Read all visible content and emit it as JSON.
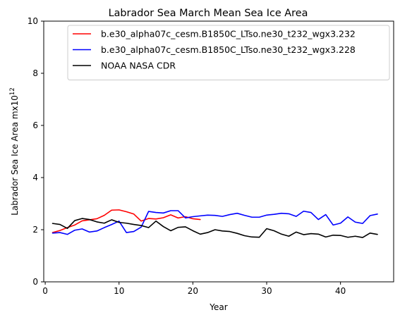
{
  "chart_data": {
    "type": "line",
    "title": "Labrador Sea March Mean Sea Ice Area",
    "xlabel": "Year",
    "ylabel_main": "Labrador Sea Ice Area mx10",
    "ylabel_sup": "12",
    "xlim": [
      -0.2,
      47.2
    ],
    "ylim": [
      0,
      10
    ],
    "xticks": [
      0,
      10,
      20,
      30,
      40
    ],
    "yticks": [
      0,
      2,
      4,
      6,
      8,
      10
    ],
    "grid": false,
    "legend_position": "upper right",
    "series": [
      {
        "name": "b.e30_alpha07c_cesm.B1850C_LTso.ne30_t232_wgx3.232",
        "color": "#ff0000",
        "x": [
          1,
          2,
          3,
          4,
          5,
          6,
          7,
          8,
          9,
          10,
          11,
          12,
          13,
          14,
          15,
          16,
          17,
          18,
          19,
          20,
          21
        ],
        "values": [
          1.89,
          1.97,
          2.08,
          2.18,
          2.34,
          2.38,
          2.42,
          2.55,
          2.75,
          2.76,
          2.69,
          2.6,
          2.33,
          2.43,
          2.41,
          2.46,
          2.57,
          2.45,
          2.5,
          2.42,
          2.39
        ]
      },
      {
        "name": "b.e30_alpha07c_cesm.B1850C_LTso.ne30_t232_wgx3.228",
        "color": "#0000ff",
        "x": [
          1,
          2,
          3,
          4,
          5,
          6,
          7,
          8,
          9,
          10,
          11,
          12,
          13,
          14,
          15,
          16,
          17,
          18,
          19,
          20,
          21,
          22,
          23,
          24,
          25,
          26,
          27,
          28,
          29,
          30,
          31,
          32,
          33,
          34,
          35,
          36,
          37,
          38,
          39,
          40,
          41,
          42,
          43,
          44,
          45
        ],
        "values": [
          1.87,
          1.89,
          1.82,
          1.98,
          2.03,
          1.91,
          1.95,
          2.08,
          2.2,
          2.33,
          1.89,
          1.93,
          2.1,
          2.7,
          2.66,
          2.64,
          2.73,
          2.73,
          2.45,
          2.5,
          2.53,
          2.56,
          2.55,
          2.51,
          2.58,
          2.63,
          2.55,
          2.48,
          2.48,
          2.56,
          2.59,
          2.63,
          2.61,
          2.51,
          2.71,
          2.66,
          2.39,
          2.58,
          2.18,
          2.25,
          2.49,
          2.29,
          2.24,
          2.54,
          2.6
        ]
      },
      {
        "name": "NOAA NASA CDR",
        "color": "#000000",
        "x": [
          1,
          2,
          3,
          4,
          5,
          6,
          7,
          8,
          9,
          10,
          11,
          12,
          13,
          14,
          15,
          16,
          17,
          18,
          19,
          20,
          21,
          22,
          23,
          24,
          25,
          26,
          27,
          28,
          29,
          30,
          31,
          32,
          33,
          34,
          35,
          36,
          37,
          38,
          39,
          40,
          41,
          42,
          43,
          44,
          45
        ],
        "values": [
          2.24,
          2.2,
          2.05,
          2.35,
          2.43,
          2.39,
          2.3,
          2.25,
          2.38,
          2.28,
          2.25,
          2.2,
          2.16,
          2.08,
          2.33,
          2.12,
          1.96,
          2.09,
          2.11,
          1.96,
          1.83,
          1.89,
          2.0,
          1.95,
          1.93,
          1.86,
          1.77,
          1.72,
          1.71,
          2.04,
          1.96,
          1.83,
          1.75,
          1.91,
          1.81,
          1.85,
          1.83,
          1.72,
          1.79,
          1.78,
          1.71,
          1.75,
          1.7,
          1.87,
          1.82
        ]
      }
    ]
  }
}
